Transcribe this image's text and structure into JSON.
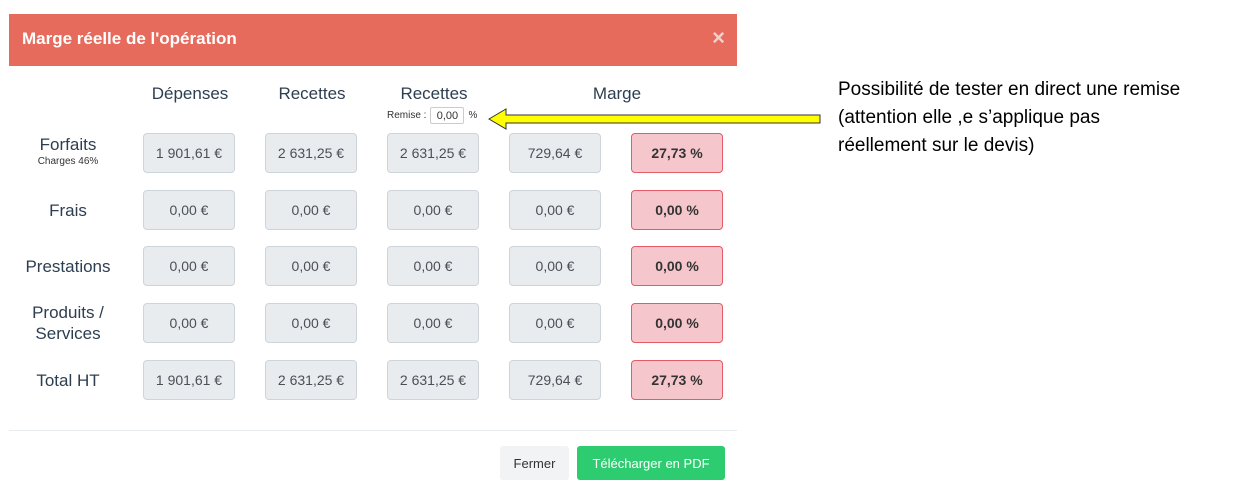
{
  "modal": {
    "title": "Marge réelle de l'opération",
    "close_symbol": "×"
  },
  "columns": {
    "depenses": "Dépenses",
    "recettes": "Recettes",
    "recettes_remise": "Recettes",
    "marge": "Marge"
  },
  "remise": {
    "label": "Remise :",
    "value": "0,00",
    "unit": "%"
  },
  "rows": [
    {
      "label": "Forfaits",
      "sub": "Charges 46%",
      "depenses": "1 901,61 €",
      "recettes": "2 631,25 €",
      "recettes_remise": "2 631,25 €",
      "marge": "729,64 €",
      "pct": "27,73 %"
    },
    {
      "label": "Frais",
      "sub": "",
      "depenses": "0,00 €",
      "recettes": "0,00 €",
      "recettes_remise": "0,00 €",
      "marge": "0,00 €",
      "pct": "0,00 %"
    },
    {
      "label": "Prestations",
      "sub": "",
      "depenses": "0,00 €",
      "recettes": "0,00 €",
      "recettes_remise": "0,00 €",
      "marge": "0,00 €",
      "pct": "0,00 %"
    },
    {
      "label": "Produits /",
      "label2": "Services",
      "sub": "",
      "depenses": "0,00 €",
      "recettes": "0,00 €",
      "recettes_remise": "0,00 €",
      "marge": "0,00 €",
      "pct": "0,00 %"
    },
    {
      "label": "Total HT",
      "sub": "",
      "depenses": "1 901,61 €",
      "recettes": "2 631,25 €",
      "recettes_remise": "2 631,25 €",
      "marge": "729,64 €",
      "pct": "27,73 %"
    }
  ],
  "footer": {
    "close_label": "Fermer",
    "pdf_label": "Télécharger en PDF"
  },
  "annotation": {
    "line1": "Possibilité de tester en direct une remise",
    "line2": "(attention elle ,e s’applique pas",
    "line3": "réellement sur le devis)"
  },
  "colors": {
    "header": "#e76b5c",
    "pct_bg": "#f5c6cb",
    "pct_border": "#e25b67",
    "pdf_button": "#2ecc71",
    "arrow_fill": "#ffff00"
  },
  "icons": {
    "close": "close-icon",
    "arrow": "arrow-left-icon"
  }
}
